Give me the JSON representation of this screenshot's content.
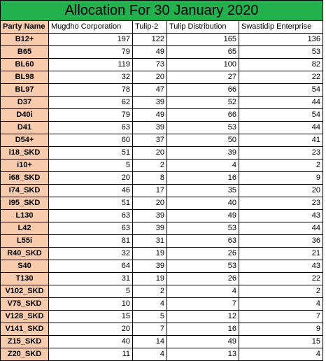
{
  "title": "Allocation For 30 January 2020",
  "headers": [
    "Party Name",
    "Mugdho Corporation",
    "Tulip-2",
    "Tulip Distribution",
    "Swastidip Enterprise"
  ],
  "rows": [
    [
      "B12+",
      "197",
      "122",
      "165",
      "136"
    ],
    [
      "B65",
      "79",
      "49",
      "65",
      "53"
    ],
    [
      "BL60",
      "119",
      "73",
      "100",
      "82"
    ],
    [
      "BL98",
      "32",
      "20",
      "27",
      "22"
    ],
    [
      "BL97",
      "78",
      "47",
      "66",
      "54"
    ],
    [
      "D37",
      "62",
      "39",
      "52",
      "44"
    ],
    [
      "D40i",
      "79",
      "49",
      "66",
      "54"
    ],
    [
      "D41",
      "63",
      "39",
      "53",
      "44"
    ],
    [
      "D54+",
      "60",
      "37",
      "50",
      "41"
    ],
    [
      "i18_SKD",
      "51",
      "20",
      "39",
      "23"
    ],
    [
      "i10+",
      "5",
      "2",
      "4",
      "2"
    ],
    [
      "i68_SKD",
      "20",
      "8",
      "16",
      "9"
    ],
    [
      "i74_SKD",
      "46",
      "17",
      "35",
      "20"
    ],
    [
      "I95_SKD",
      "51",
      "20",
      "40",
      "23"
    ],
    [
      "L130",
      "63",
      "39",
      "49",
      "43"
    ],
    [
      "L42",
      "63",
      "39",
      "53",
      "44"
    ],
    [
      "L55i",
      "81",
      "31",
      "63",
      "36"
    ],
    [
      "R40_SKD",
      "32",
      "19",
      "26",
      "21"
    ],
    [
      "S40",
      "64",
      "39",
      "53",
      "43"
    ],
    [
      "T130",
      "31",
      "19",
      "26",
      "22"
    ],
    [
      "V102_SKD",
      "5",
      "2",
      "4",
      "2"
    ],
    [
      "V75_SKD",
      "10",
      "4",
      "7",
      "4"
    ],
    [
      "V128_SKD",
      "15",
      "5",
      "12",
      "7"
    ],
    [
      "V141_SKD",
      "20",
      "7",
      "16",
      "9"
    ],
    [
      "Z15_SKD",
      "40",
      "14",
      "49",
      "15"
    ],
    [
      "Z20_SKD",
      "11",
      "4",
      "13",
      "4"
    ]
  ],
  "colors": {
    "title_bg": "#22b14c",
    "party_bg": "#f8cbad"
  }
}
